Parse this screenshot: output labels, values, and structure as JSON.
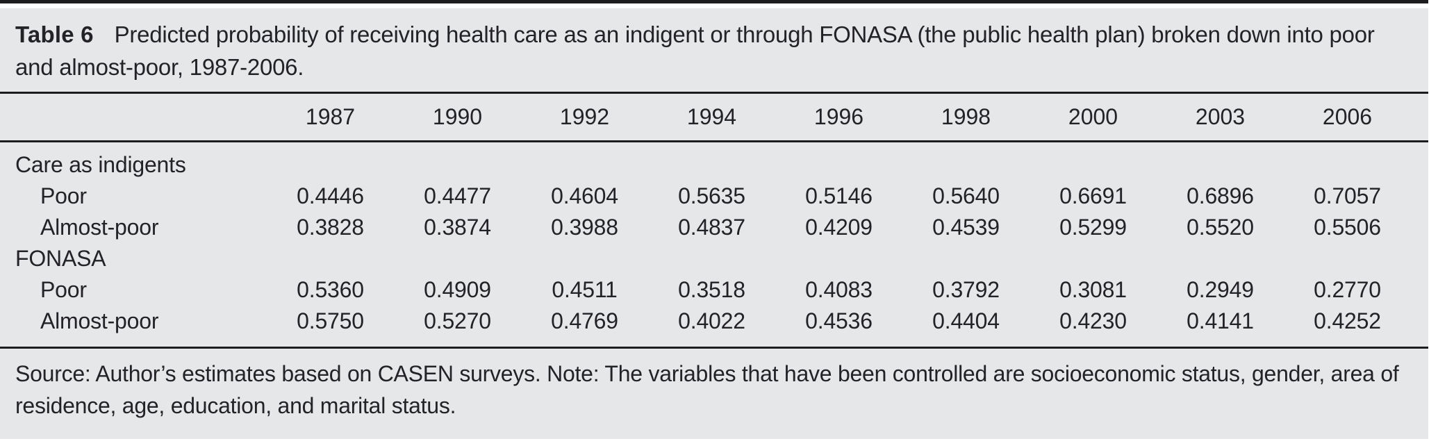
{
  "page": {
    "background": "#ffffff",
    "panel_background": "#e6e7e9",
    "text_color": "#232227",
    "rule_color": "#1c1c1e"
  },
  "table": {
    "label": "Table 6",
    "caption": "Predicted probability of receiving health care as an indigent or through FONASA (the public health plan) broken down into poor and almost-poor, 1987-2006.",
    "columns": [
      "1987",
      "1990",
      "1992",
      "1994",
      "1996",
      "1998",
      "2000",
      "2003",
      "2006"
    ],
    "groups": [
      {
        "name": "Care as indigents",
        "rows": [
          {
            "label": "Poor",
            "values": [
              "0.4446",
              "0.4477",
              "0.4604",
              "0.5635",
              "0.5146",
              "0.5640",
              "0.6691",
              "0.6896",
              "0.7057"
            ]
          },
          {
            "label": "Almost-poor",
            "values": [
              "0.3828",
              "0.3874",
              "0.3988",
              "0.4837",
              "0.4209",
              "0.4539",
              "0.5299",
              "0.5520",
              "0.5506"
            ]
          }
        ]
      },
      {
        "name": "FONASA",
        "rows": [
          {
            "label": "Poor",
            "values": [
              "0.5360",
              "0.4909",
              "0.4511",
              "0.3518",
              "0.4083",
              "0.3792",
              "0.3081",
              "0.2949",
              "0.2770"
            ]
          },
          {
            "label": "Almost-poor",
            "values": [
              "0.5750",
              "0.5270",
              "0.4769",
              "0.4022",
              "0.4536",
              "0.4404",
              "0.4230",
              "0.4141",
              "0.4252"
            ]
          }
        ]
      }
    ],
    "footnote": "Source: Author’s estimates based on CASEN surveys. Note: The variables that have been controlled are socioeconomic status, gender, area of residence, age, education, and marital status."
  },
  "chart_data": {
    "type": "table",
    "title": "Table 6  Predicted probability of receiving health care as an indigent or through FONASA (the public health plan) broken down into poor and almost-poor, 1987-2006.",
    "categories": [
      "1987",
      "1990",
      "1992",
      "1994",
      "1996",
      "1998",
      "2000",
      "2003",
      "2006"
    ],
    "series": [
      {
        "name": "Care as indigents - Poor",
        "values": [
          0.4446,
          0.4477,
          0.4604,
          0.5635,
          0.5146,
          0.564,
          0.6691,
          0.6896,
          0.7057
        ]
      },
      {
        "name": "Care as indigents - Almost-poor",
        "values": [
          0.3828,
          0.3874,
          0.3988,
          0.4837,
          0.4209,
          0.4539,
          0.5299,
          0.552,
          0.5506
        ]
      },
      {
        "name": "FONASA - Poor",
        "values": [
          0.536,
          0.4909,
          0.4511,
          0.3518,
          0.4083,
          0.3792,
          0.3081,
          0.2949,
          0.277
        ]
      },
      {
        "name": "FONASA - Almost-poor",
        "values": [
          0.575,
          0.527,
          0.4769,
          0.4022,
          0.4536,
          0.4404,
          0.423,
          0.4141,
          0.4252
        ]
      }
    ],
    "note": "Source: Author’s estimates based on CASEN surveys. Note: The variables that have been controlled are socioeconomic status, gender, area of residence, age, education, and marital status."
  }
}
